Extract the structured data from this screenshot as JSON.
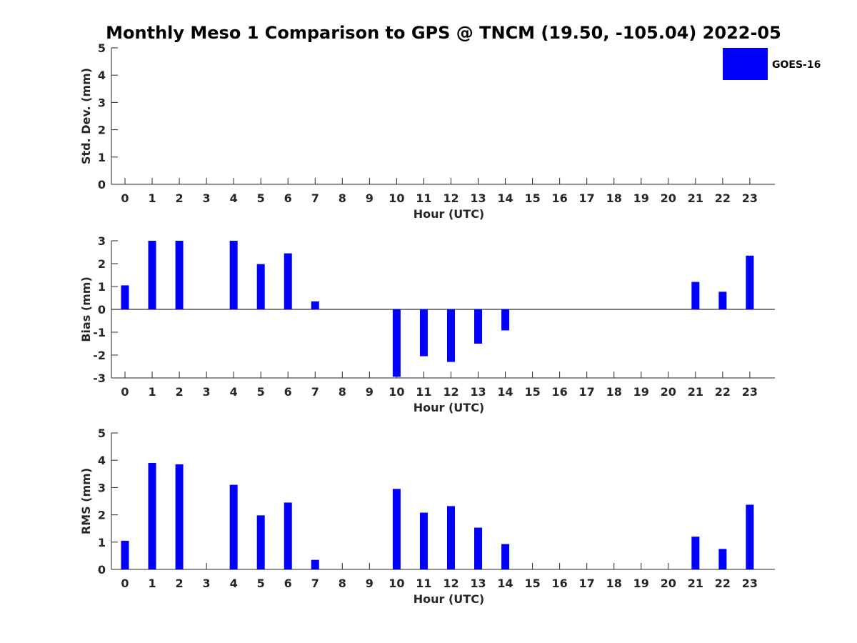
{
  "colors": {
    "bar": "#0000ff",
    "axis": "#262626",
    "background": "#ffffff"
  },
  "legend": {
    "label": "GOES-16",
    "placement": "top-right"
  },
  "chart_data": [
    {
      "type": "bar",
      "title": "Monthly Meso 1 Comparison to GPS @ TNCM (19.50, -105.04) 2022-05",
      "xlabel": "Hour (UTC)",
      "ylabel": "Std. Dev. (mm)",
      "categories": [
        "0",
        "1",
        "2",
        "3",
        "4",
        "5",
        "6",
        "7",
        "8",
        "9",
        "10",
        "11",
        "12",
        "13",
        "14",
        "15",
        "16",
        "17",
        "18",
        "19",
        "20",
        "21",
        "22",
        "23"
      ],
      "ylim": [
        0,
        5
      ],
      "yticks": [
        "0",
        "1",
        "2",
        "3",
        "4",
        "5"
      ],
      "series": [
        {
          "name": "GOES-16",
          "values": [
            0,
            0,
            0,
            0,
            0,
            0,
            0,
            0,
            0,
            0,
            0,
            0,
            0,
            0,
            0,
            0,
            0,
            0,
            0,
            0,
            0,
            0,
            0,
            0
          ]
        }
      ]
    },
    {
      "type": "bar",
      "xlabel": "Hour (UTC)",
      "ylabel": "Bias (mm)",
      "categories": [
        "0",
        "1",
        "2",
        "3",
        "4",
        "5",
        "6",
        "7",
        "8",
        "9",
        "10",
        "11",
        "12",
        "13",
        "14",
        "15",
        "16",
        "17",
        "18",
        "19",
        "20",
        "21",
        "22",
        "23"
      ],
      "ylim": [
        -3,
        3
      ],
      "yticks": [
        "-3",
        "-2",
        "-1",
        "0",
        "1",
        "2",
        "3"
      ],
      "series": [
        {
          "name": "GOES-16",
          "values": [
            1.05,
            3.0,
            3.0,
            0,
            3.0,
            1.98,
            2.45,
            0.35,
            0,
            0,
            -2.95,
            -2.05,
            -2.3,
            -1.5,
            -0.92,
            0,
            0,
            0,
            0,
            0,
            0,
            1.2,
            0.77,
            2.35
          ]
        }
      ]
    },
    {
      "type": "bar",
      "xlabel": "Hour (UTC)",
      "ylabel": "RMS (mm)",
      "categories": [
        "0",
        "1",
        "2",
        "3",
        "4",
        "5",
        "6",
        "7",
        "8",
        "9",
        "10",
        "11",
        "12",
        "13",
        "14",
        "15",
        "16",
        "17",
        "18",
        "19",
        "20",
        "21",
        "22",
        "23"
      ],
      "ylim": [
        0,
        5
      ],
      "yticks": [
        "0",
        "1",
        "2",
        "3",
        "4",
        "5"
      ],
      "series": [
        {
          "name": "GOES-16",
          "values": [
            1.05,
            3.9,
            3.85,
            0,
            3.1,
            1.98,
            2.45,
            0.35,
            0,
            0,
            2.95,
            2.08,
            2.32,
            1.53,
            0.93,
            0,
            0,
            0,
            0,
            0,
            0,
            1.2,
            0.75,
            2.37
          ]
        }
      ]
    }
  ]
}
